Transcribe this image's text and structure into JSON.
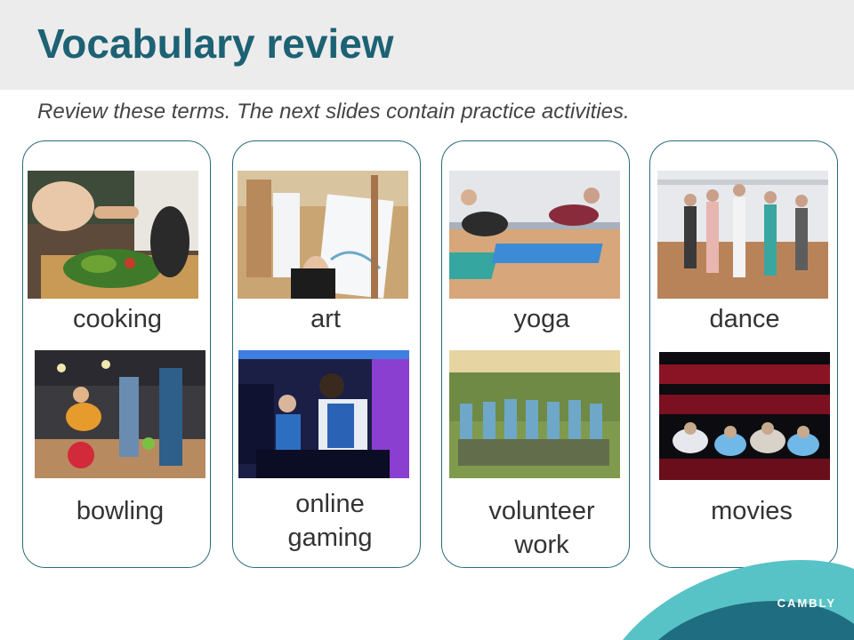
{
  "slide": {
    "title": "Vocabulary review",
    "subtitle": "Review these terms. The next slides contain practice activities."
  },
  "terms": [
    {
      "label": "cooking"
    },
    {
      "label": "art"
    },
    {
      "label": "yoga"
    },
    {
      "label": "dance"
    },
    {
      "label": "bowling"
    },
    {
      "label": "online\ngaming"
    },
    {
      "label": "volunteer\nwork"
    },
    {
      "label": "movies"
    }
  ],
  "brand": {
    "name": "CAMBLY"
  },
  "colors": {
    "title": "#1d6274",
    "card_border": "#2a6a7c",
    "header_bg": "#ececec",
    "brand_teal": "#58c3c6",
    "brand_dark": "#1f6d80"
  }
}
